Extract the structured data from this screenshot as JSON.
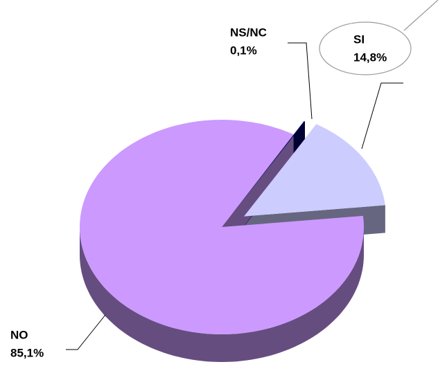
{
  "chart_data": {
    "type": "pie",
    "categories": [
      "NO",
      "NS/NC",
      "SI"
    ],
    "values": [
      85.1,
      0.1,
      14.8
    ],
    "value_labels": [
      "85,1%",
      "0,1%",
      "14,8%"
    ],
    "colors": [
      "#cc99ff",
      "#000066",
      "#ccccff"
    ]
  }
}
